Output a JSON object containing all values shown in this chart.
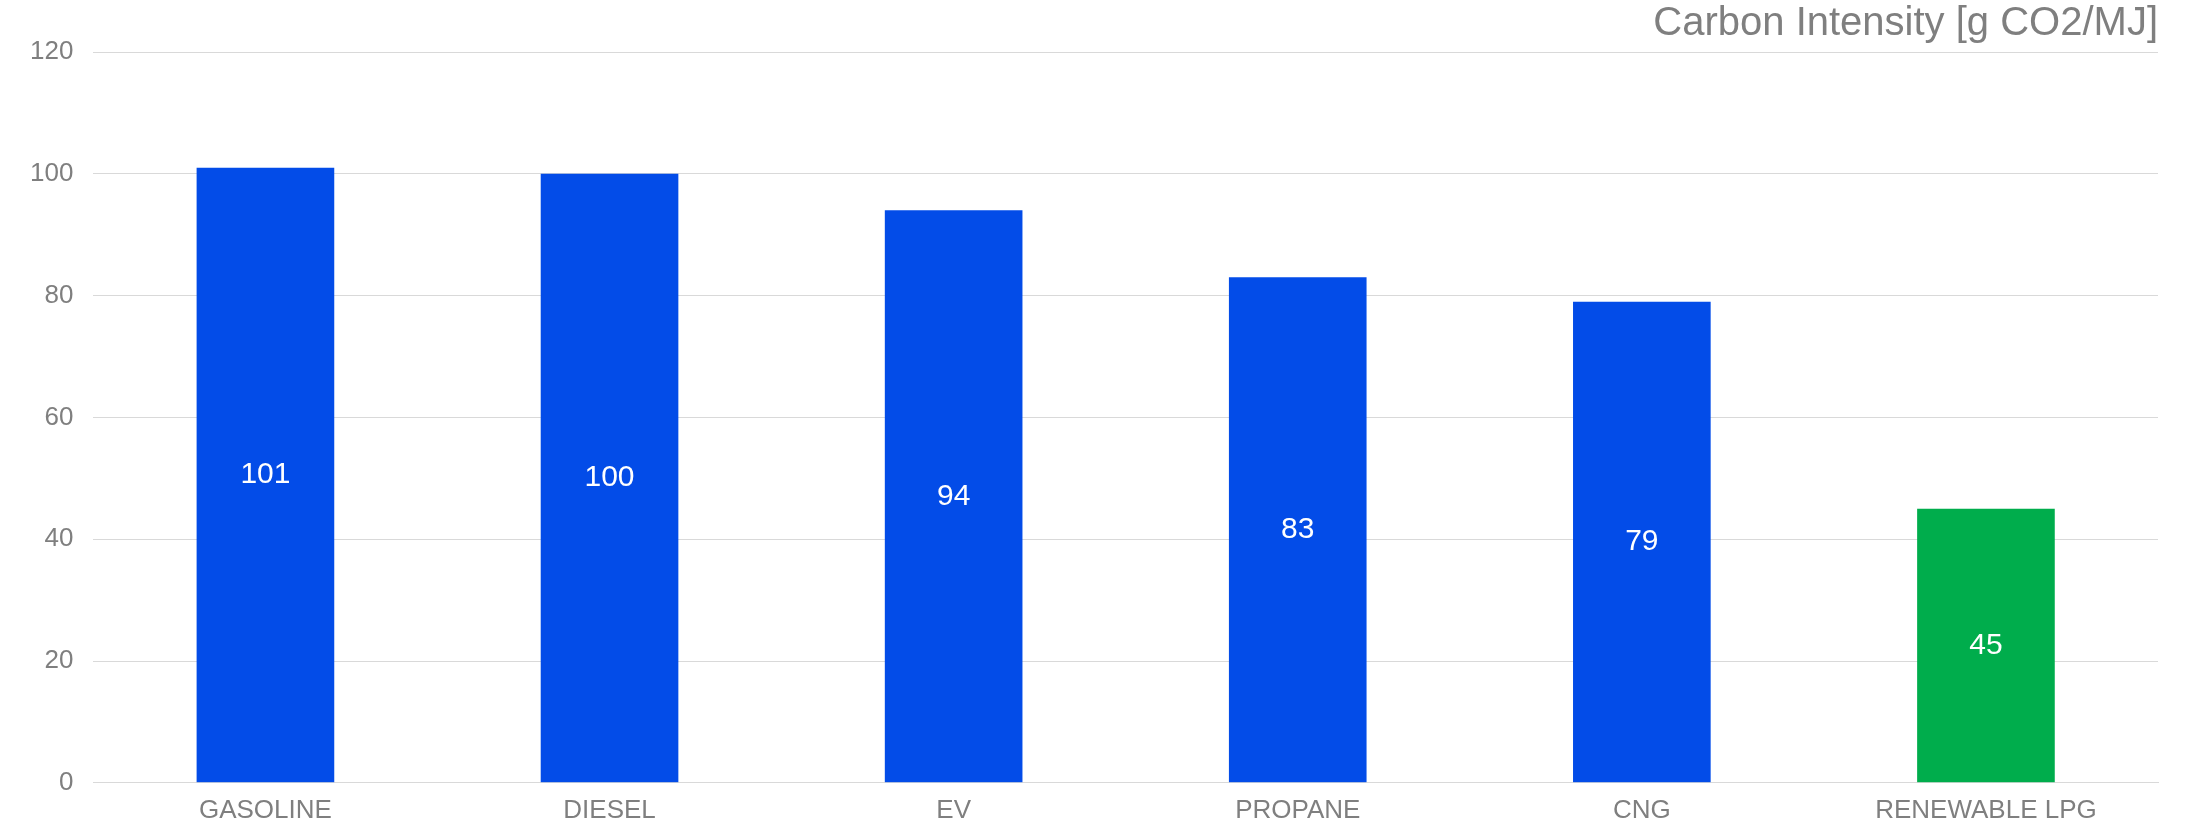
{
  "chart_data": {
    "type": "bar",
    "title": "Carbon Intensity [g CO2/MJ]",
    "categories": [
      "GASOLINE",
      "DIESEL",
      "EV",
      "PROPANE",
      "CNG",
      "RENEWABLE LPG"
    ],
    "values": [
      101,
      100,
      94,
      83,
      79,
      45
    ],
    "colors": [
      "#034ce8",
      "#034ce8",
      "#034ce8",
      "#034ce8",
      "#034ce8",
      "#00ad4c"
    ],
    "ylim": [
      0,
      120
    ],
    "yticks": [
      0,
      20,
      40,
      60,
      80,
      100,
      120
    ],
    "grid": "y",
    "data_labels": true
  }
}
